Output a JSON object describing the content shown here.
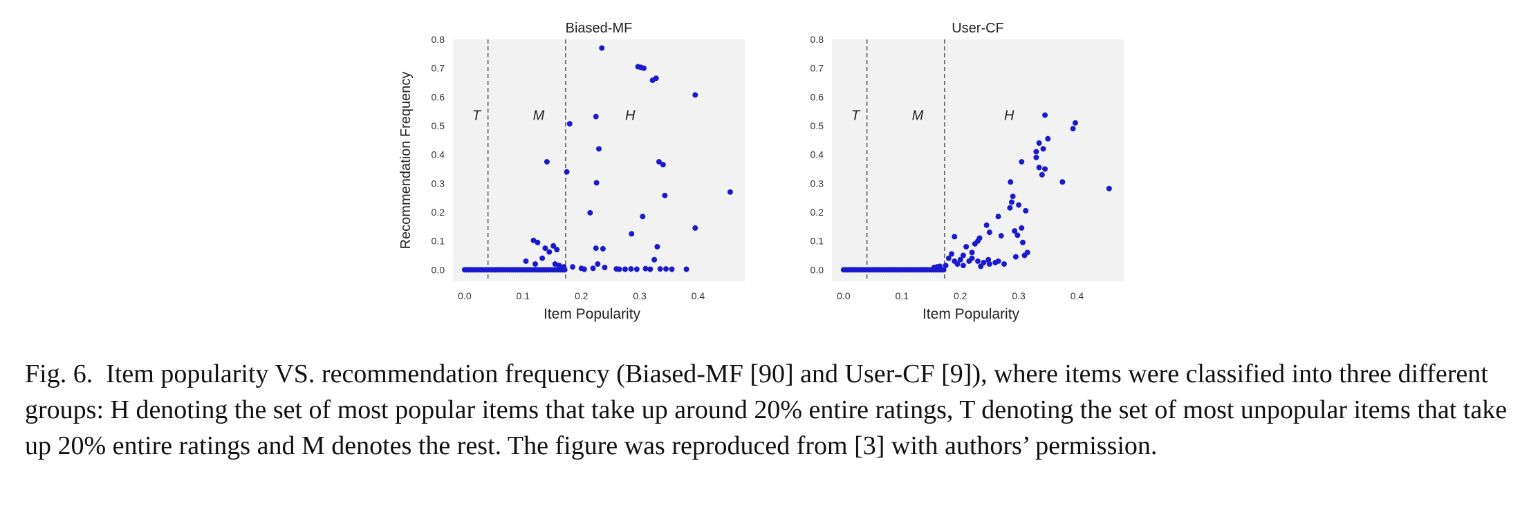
{
  "caption": {
    "label": "Fig. 6.",
    "text": "Item popularity VS. recommendation frequency (Biased-MF [90] and User-CF [9]), where items were classified into three different groups: H denoting the set of most popular items that take up around 20% entire ratings, T denoting the set of most unpopular items that take up 20% entire ratings and M denotes the rest. The figure was reproduced from [3] with authors’ permission."
  },
  "colors": {
    "points": "#1a1acd",
    "panel_bg": "#f2f2f2",
    "divider": "#555555"
  },
  "chart_data": [
    {
      "type": "scatter",
      "title": "Biased-MF",
      "xlabel": "Item Popularity",
      "ylabel": "Recommendation Frequency",
      "xlim": [
        -0.02,
        0.48
      ],
      "ylim": [
        -0.04,
        0.8
      ],
      "xticks": [
        "0.0",
        "0.1",
        "0.2",
        "0.3",
        "0.4"
      ],
      "yticks": [
        "0.0",
        "0.1",
        "0.2",
        "0.3",
        "0.4",
        "0.5",
        "0.6",
        "0.7",
        "0.8"
      ],
      "grid": false,
      "dividers": [
        0.04,
        0.173
      ],
      "regions": [
        {
          "label": "T",
          "x": 0.013,
          "y": 0.52
        },
        {
          "label": "M",
          "x": 0.117,
          "y": 0.52
        },
        {
          "label": "H",
          "x": 0.275,
          "y": 0.52
        }
      ],
      "baseline": {
        "x_start": 0.0,
        "x_end": 0.173,
        "y": 0.0
      },
      "points": [
        [
          0.235,
          0.77
        ],
        [
          0.297,
          0.705
        ],
        [
          0.302,
          0.703
        ],
        [
          0.307,
          0.7
        ],
        [
          0.322,
          0.658
        ],
        [
          0.328,
          0.665
        ],
        [
          0.395,
          0.607
        ],
        [
          0.225,
          0.532
        ],
        [
          0.18,
          0.507
        ],
        [
          0.23,
          0.42
        ],
        [
          0.141,
          0.375
        ],
        [
          0.333,
          0.375
        ],
        [
          0.34,
          0.365
        ],
        [
          0.175,
          0.34
        ],
        [
          0.226,
          0.302
        ],
        [
          0.455,
          0.27
        ],
        [
          0.343,
          0.258
        ],
        [
          0.215,
          0.198
        ],
        [
          0.305,
          0.185
        ],
        [
          0.395,
          0.145
        ],
        [
          0.286,
          0.125
        ],
        [
          0.118,
          0.102
        ],
        [
          0.225,
          0.075
        ],
        [
          0.237,
          0.073
        ],
        [
          0.33,
          0.08
        ],
        [
          0.125,
          0.095
        ],
        [
          0.133,
          0.04
        ],
        [
          0.138,
          0.075
        ],
        [
          0.145,
          0.062
        ],
        [
          0.152,
          0.083
        ],
        [
          0.158,
          0.07
        ],
        [
          0.121,
          0.02
        ],
        [
          0.105,
          0.03
        ],
        [
          0.155,
          0.02
        ],
        [
          0.162,
          0.015
        ],
        [
          0.17,
          0.01
        ],
        [
          0.185,
          0.01
        ],
        [
          0.2,
          0.005
        ],
        [
          0.22,
          0.005
        ],
        [
          0.228,
          0.02
        ],
        [
          0.24,
          0.008
        ],
        [
          0.26,
          0.003
        ],
        [
          0.275,
          0.002
        ],
        [
          0.285,
          0.003
        ],
        [
          0.295,
          0.002
        ],
        [
          0.31,
          0.004
        ],
        [
          0.318,
          0.002
        ],
        [
          0.325,
          0.035
        ],
        [
          0.335,
          0.003
        ],
        [
          0.345,
          0.003
        ],
        [
          0.355,
          0.002
        ],
        [
          0.38,
          0.002
        ],
        [
          0.205,
          0.002
        ],
        [
          0.265,
          0.002
        ]
      ]
    },
    {
      "type": "scatter",
      "title": "User-CF",
      "xlabel": "Item Popularity",
      "ylabel": "",
      "xlim": [
        -0.02,
        0.48
      ],
      "ylim": [
        -0.04,
        0.8
      ],
      "xticks": [
        "0.0",
        "0.1",
        "0.2",
        "0.3",
        "0.4"
      ],
      "yticks": [
        "0.0",
        "0.1",
        "0.2",
        "0.3",
        "0.4",
        "0.5",
        "0.6",
        "0.7",
        "0.8"
      ],
      "grid": false,
      "dividers": [
        0.04,
        0.173
      ],
      "regions": [
        {
          "label": "T",
          "x": 0.013,
          "y": 0.52
        },
        {
          "label": "M",
          "x": 0.117,
          "y": 0.52
        },
        {
          "label": "H",
          "x": 0.275,
          "y": 0.52
        }
      ],
      "baseline": {
        "x_start": 0.0,
        "x_end": 0.173,
        "y": 0.0
      },
      "points": [
        [
          0.345,
          0.537
        ],
        [
          0.397,
          0.51
        ],
        [
          0.393,
          0.49
        ],
        [
          0.35,
          0.455
        ],
        [
          0.335,
          0.44
        ],
        [
          0.33,
          0.41
        ],
        [
          0.342,
          0.42
        ],
        [
          0.33,
          0.39
        ],
        [
          0.305,
          0.375
        ],
        [
          0.335,
          0.355
        ],
        [
          0.345,
          0.35
        ],
        [
          0.34,
          0.33
        ],
        [
          0.286,
          0.305
        ],
        [
          0.375,
          0.305
        ],
        [
          0.455,
          0.282
        ],
        [
          0.29,
          0.255
        ],
        [
          0.288,
          0.235
        ],
        [
          0.3,
          0.225
        ],
        [
          0.285,
          0.215
        ],
        [
          0.312,
          0.205
        ],
        [
          0.265,
          0.185
        ],
        [
          0.305,
          0.145
        ],
        [
          0.293,
          0.135
        ],
        [
          0.298,
          0.12
        ],
        [
          0.307,
          0.095
        ],
        [
          0.315,
          0.06
        ],
        [
          0.31,
          0.05
        ],
        [
          0.295,
          0.045
        ],
        [
          0.27,
          0.118
        ],
        [
          0.245,
          0.155
        ],
        [
          0.25,
          0.13
        ],
        [
          0.233,
          0.11
        ],
        [
          0.23,
          0.1
        ],
        [
          0.225,
          0.09
        ],
        [
          0.19,
          0.115
        ],
        [
          0.21,
          0.08
        ],
        [
          0.22,
          0.06
        ],
        [
          0.205,
          0.05
        ],
        [
          0.185,
          0.055
        ],
        [
          0.18,
          0.04
        ],
        [
          0.2,
          0.035
        ],
        [
          0.215,
          0.03
        ],
        [
          0.23,
          0.03
        ],
        [
          0.24,
          0.025
        ],
        [
          0.25,
          0.02
        ],
        [
          0.26,
          0.025
        ],
        [
          0.275,
          0.02
        ],
        [
          0.195,
          0.02
        ],
        [
          0.175,
          0.015
        ],
        [
          0.165,
          0.012
        ],
        [
          0.16,
          0.01
        ],
        [
          0.155,
          0.008
        ],
        [
          0.205,
          0.015
        ],
        [
          0.235,
          0.012
        ],
        [
          0.248,
          0.035
        ],
        [
          0.22,
          0.04
        ],
        [
          0.19,
          0.03
        ],
        [
          0.265,
          0.03
        ]
      ]
    }
  ]
}
